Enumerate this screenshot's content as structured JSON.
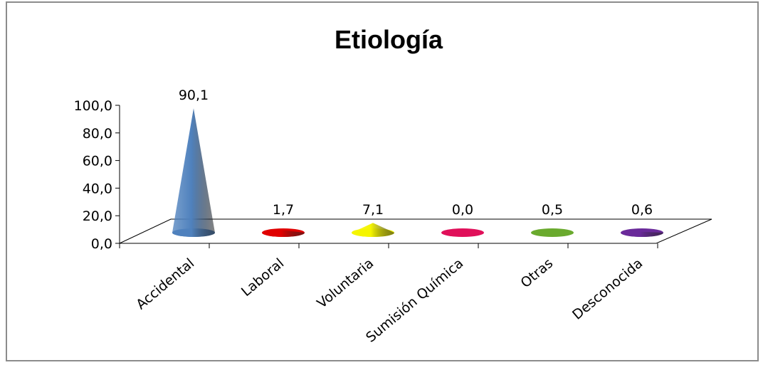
{
  "chart_data": {
    "type": "bar",
    "shape": "cone-3d",
    "title": "Etiología",
    "xlabel": "",
    "ylabel": "",
    "ylim": [
      0,
      100
    ],
    "yticks": [
      "0,0",
      "20,0",
      "40,0",
      "60,0",
      "80,0",
      "100,0"
    ],
    "grid": false,
    "legend": "none",
    "categories": [
      "Accidental",
      "Laboral",
      "Voluntaria",
      "Sumisión Química",
      "Otras",
      "Desconocida"
    ],
    "values": [
      90.1,
      1.7,
      7.1,
      0.0,
      0.5,
      0.6
    ],
    "value_labels": [
      "90,1",
      "1,7",
      "7,1",
      "0,0",
      "0,5",
      "0,6"
    ],
    "colors": [
      "#4f81bd",
      "#e00000",
      "#f5f500",
      "#e0105a",
      "#6aaa2e",
      "#6a2a9a"
    ]
  }
}
